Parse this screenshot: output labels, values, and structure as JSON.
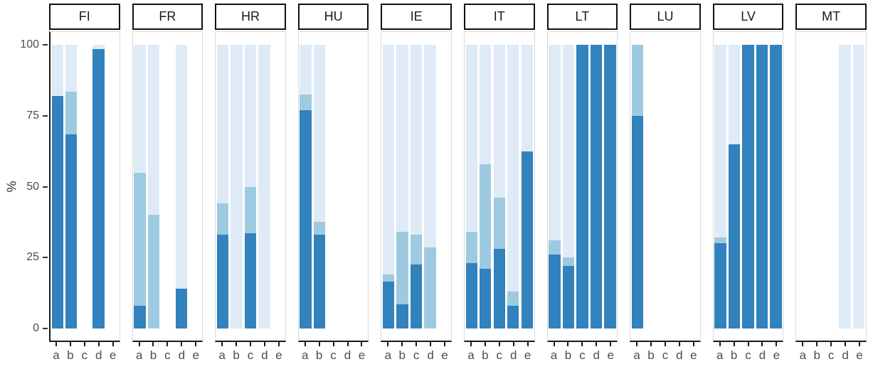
{
  "chart_data": {
    "type": "bar",
    "stacked": true,
    "title": "",
    "ylabel": "%",
    "xlabel": "",
    "ylim": [
      0,
      100
    ],
    "yticks": [
      0,
      25,
      50,
      75,
      100
    ],
    "categories": [
      "a",
      "b",
      "c",
      "d",
      "e"
    ],
    "grid": false,
    "legend": "none",
    "colors": {
      "dark": "#3182bd",
      "mid": "#9ecae1",
      "light": "#deebf7"
    },
    "facets": [
      {
        "label": "FI",
        "bars": [
          {
            "category": "a",
            "dark": 82,
            "mid": 0,
            "light": 18
          },
          {
            "category": "b",
            "dark": 68.5,
            "mid": 15,
            "light": 16.5
          },
          null,
          {
            "category": "d",
            "dark": 98.5,
            "mid": 0,
            "light": 1.5
          },
          null
        ]
      },
      {
        "label": "FR",
        "bars": [
          {
            "category": "a",
            "dark": 8,
            "mid": 47,
            "light": 45
          },
          {
            "category": "b",
            "dark": 0,
            "mid": 40,
            "light": 60
          },
          null,
          {
            "category": "d",
            "dark": 14,
            "mid": 0,
            "light": 86
          },
          null
        ]
      },
      {
        "label": "HR",
        "bars": [
          {
            "category": "a",
            "dark": 33,
            "mid": 11,
            "light": 56
          },
          {
            "category": "b",
            "dark": 0,
            "mid": 0,
            "light": 100
          },
          {
            "category": "c",
            "dark": 33.5,
            "mid": 16.5,
            "light": 50
          },
          {
            "category": "d",
            "dark": 0,
            "mid": 0,
            "light": 100
          },
          null
        ]
      },
      {
        "label": "HU",
        "bars": [
          {
            "category": "a",
            "dark": 77,
            "mid": 5.5,
            "light": 17.5
          },
          {
            "category": "b",
            "dark": 33,
            "mid": 4.5,
            "light": 62.5
          },
          null,
          null,
          null
        ]
      },
      {
        "label": "IE",
        "bars": [
          {
            "category": "a",
            "dark": 16.5,
            "mid": 2.5,
            "light": 81
          },
          {
            "category": "b",
            "dark": 8.5,
            "mid": 25.5,
            "light": 66
          },
          {
            "category": "c",
            "dark": 22.5,
            "mid": 10.5,
            "light": 67
          },
          {
            "category": "d",
            "dark": 0,
            "mid": 28.5,
            "light": 71.5
          },
          null
        ]
      },
      {
        "label": "IT",
        "bars": [
          {
            "category": "a",
            "dark": 23,
            "mid": 11,
            "light": 66
          },
          {
            "category": "b",
            "dark": 21,
            "mid": 37,
            "light": 42
          },
          {
            "category": "c",
            "dark": 28,
            "mid": 18,
            "light": 54
          },
          {
            "category": "d",
            "dark": 8,
            "mid": 5,
            "light": 87
          },
          {
            "category": "e",
            "dark": 62.5,
            "mid": 0,
            "light": 37.5
          }
        ]
      },
      {
        "label": "LT",
        "bars": [
          {
            "category": "a",
            "dark": 26,
            "mid": 5,
            "light": 69
          },
          {
            "category": "b",
            "dark": 22,
            "mid": 3,
            "light": 75
          },
          {
            "category": "c",
            "dark": 100,
            "mid": 0,
            "light": 0
          },
          {
            "category": "d",
            "dark": 100,
            "mid": 0,
            "light": 0
          },
          {
            "category": "e",
            "dark": 100,
            "mid": 0,
            "light": 0
          }
        ]
      },
      {
        "label": "LU",
        "bars": [
          {
            "category": "a",
            "dark": 75,
            "mid": 25,
            "light": 0
          },
          null,
          null,
          null,
          null
        ]
      },
      {
        "label": "LV",
        "bars": [
          {
            "category": "a",
            "dark": 30,
            "mid": 2,
            "light": 68
          },
          {
            "category": "b",
            "dark": 65,
            "mid": 0,
            "light": 35
          },
          {
            "category": "c",
            "dark": 100,
            "mid": 0,
            "light": 0
          },
          {
            "category": "d",
            "dark": 100,
            "mid": 0,
            "light": 0
          },
          {
            "category": "e",
            "dark": 100,
            "mid": 0,
            "light": 0
          }
        ]
      },
      {
        "label": "MT",
        "bars": [
          null,
          null,
          null,
          {
            "category": "d",
            "dark": 0,
            "mid": 0,
            "light": 100
          },
          {
            "category": "e",
            "dark": 0,
            "mid": 0,
            "light": 100
          }
        ]
      }
    ]
  }
}
